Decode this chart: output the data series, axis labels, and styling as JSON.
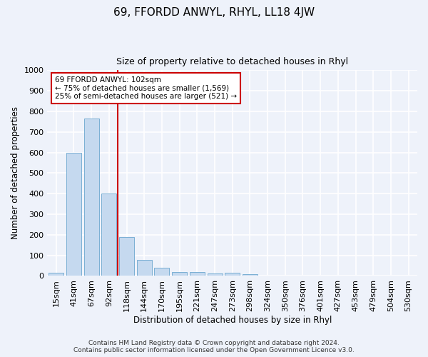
{
  "title": "69, FFORDD ANWYL, RHYL, LL18 4JW",
  "subtitle": "Size of property relative to detached houses in Rhyl",
  "xlabel": "Distribution of detached houses by size in Rhyl",
  "ylabel": "Number of detached properties",
  "bar_labels": [
    "15sqm",
    "41sqm",
    "67sqm",
    "92sqm",
    "118sqm",
    "144sqm",
    "170sqm",
    "195sqm",
    "221sqm",
    "247sqm",
    "273sqm",
    "298sqm",
    "324sqm",
    "350sqm",
    "376sqm",
    "401sqm",
    "427sqm",
    "453sqm",
    "479sqm",
    "504sqm",
    "530sqm"
  ],
  "bar_values": [
    15,
    600,
    765,
    400,
    190,
    77,
    40,
    18,
    18,
    12,
    15,
    8,
    0,
    0,
    0,
    0,
    0,
    0,
    0,
    0,
    0
  ],
  "bar_color": "#c5d9ef",
  "bar_edgecolor": "#7aafd4",
  "vline_x": 3.5,
  "vline_color": "#cc0000",
  "annotation_text": "69 FFORDD ANWYL: 102sqm\n← 75% of detached houses are smaller (1,569)\n25% of semi-detached houses are larger (521) →",
  "annotation_box_color": "#ffffff",
  "annotation_box_edgecolor": "#cc0000",
  "ylim": [
    0,
    1000
  ],
  "yticks": [
    0,
    100,
    200,
    300,
    400,
    500,
    600,
    700,
    800,
    900,
    1000
  ],
  "footer": "Contains HM Land Registry data © Crown copyright and database right 2024.\nContains public sector information licensed under the Open Government Licence v3.0.",
  "bg_color": "#eef2fa",
  "plot_bg_color": "#eef2fa",
  "grid_color": "#ffffff"
}
